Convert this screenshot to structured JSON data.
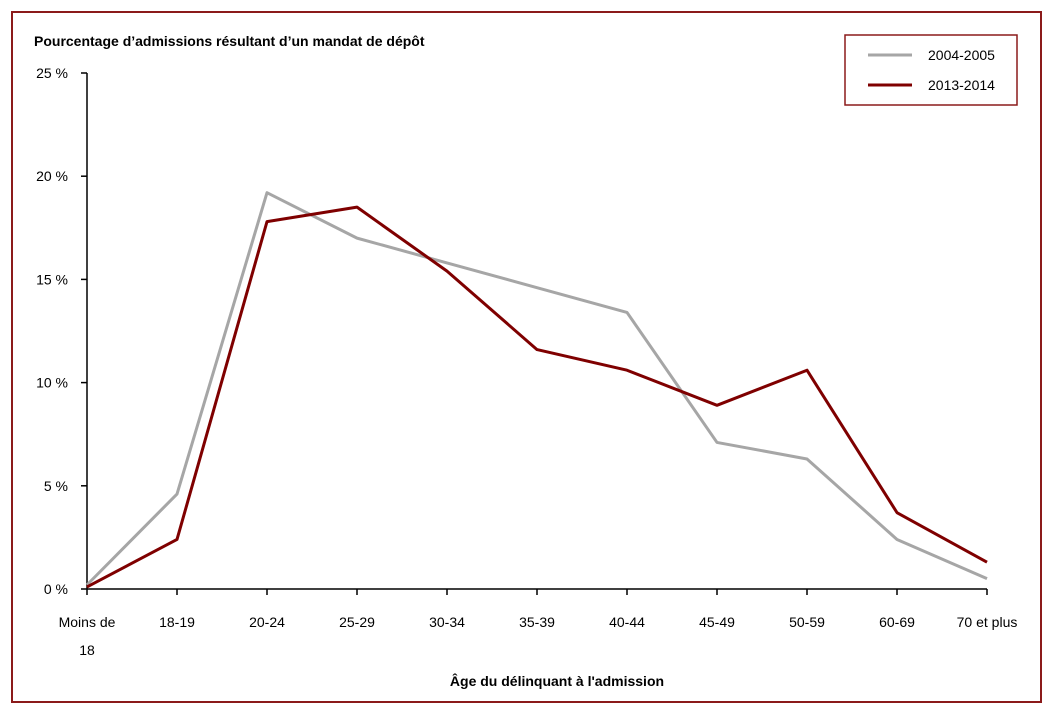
{
  "chart_data": {
    "type": "line",
    "title": "Pourcentage d’admissions résultant d’un mandat de dépôt",
    "xlabel": "Âge du délinquant à l'admission",
    "ylabel": "",
    "categories": [
      "Moins de 18",
      "18-19",
      "20-24",
      "25-29",
      "30-34",
      "35-39",
      "40-44",
      "45-49",
      "50-59",
      "60-69",
      "70 et plus"
    ],
    "y_ticks": [
      "0 %",
      "5 %",
      "10 %",
      "15 %",
      "20 %",
      "25 %"
    ],
    "ylim": [
      0,
      25
    ],
    "grid": false,
    "legend_position": "top-right",
    "series": [
      {
        "name": "2004-2005",
        "color": "#a6a6a6",
        "values": [
          0.2,
          4.6,
          19.2,
          17.0,
          15.8,
          14.6,
          13.4,
          7.1,
          6.3,
          2.4,
          0.5
        ]
      },
      {
        "name": "2013-2014",
        "color": "#7f0000",
        "values": [
          0.1,
          2.4,
          17.8,
          18.5,
          15.4,
          11.6,
          10.6,
          8.9,
          10.6,
          3.7,
          1.3
        ]
      }
    ]
  }
}
